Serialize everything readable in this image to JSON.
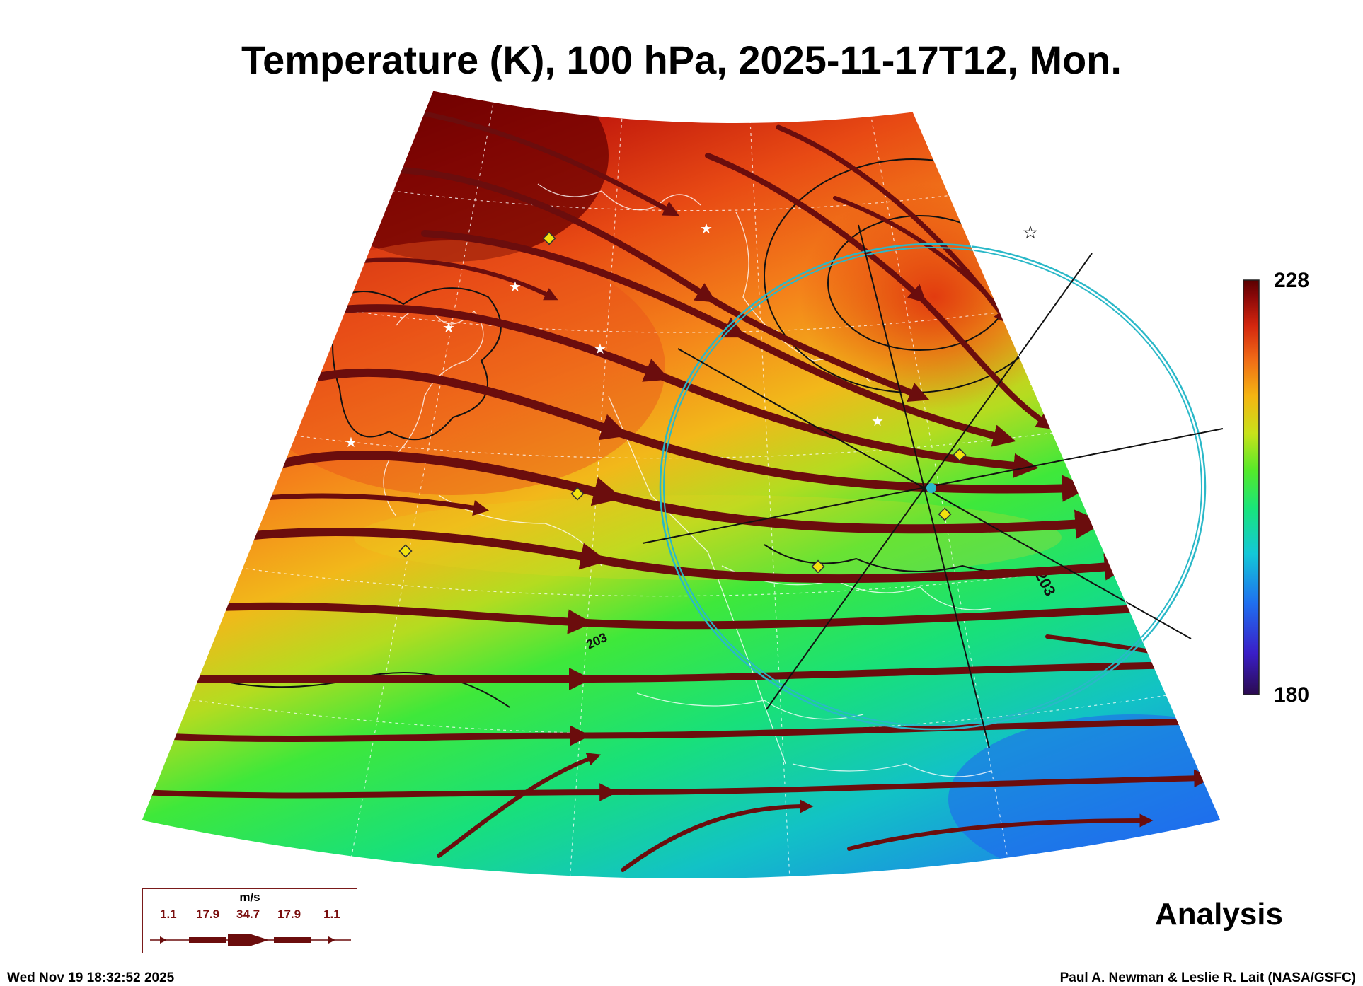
{
  "title": "Temperature (K), 100 hPa, 2025-11-17T12, Mon.",
  "colorbar": {
    "max": "228",
    "min": "180",
    "stops": [
      "#2b0a4f",
      "#3a1ec8",
      "#1f6ff0",
      "#13c8d8",
      "#19e57a",
      "#54ea2a",
      "#c8e21a",
      "#f5b512",
      "#f06a16",
      "#d4260e",
      "#8a0808",
      "#5a0000"
    ]
  },
  "contour_labels": [
    "203",
    "203"
  ],
  "legend": {
    "unit": "m/s",
    "values": [
      "1.1",
      "17.9",
      "34.7",
      "17.9",
      "1.1"
    ]
  },
  "stamp": "Analysis",
  "timestamp": "Wed Nov 19 18:32:52 2025",
  "credit": "Paul A. Newman & Leslie R. Lait (NASA/GSFC)",
  "colors": {
    "streamline": "#6b0d0d",
    "ring": "#2ab8c8",
    "marker": "#f2e20e"
  }
}
